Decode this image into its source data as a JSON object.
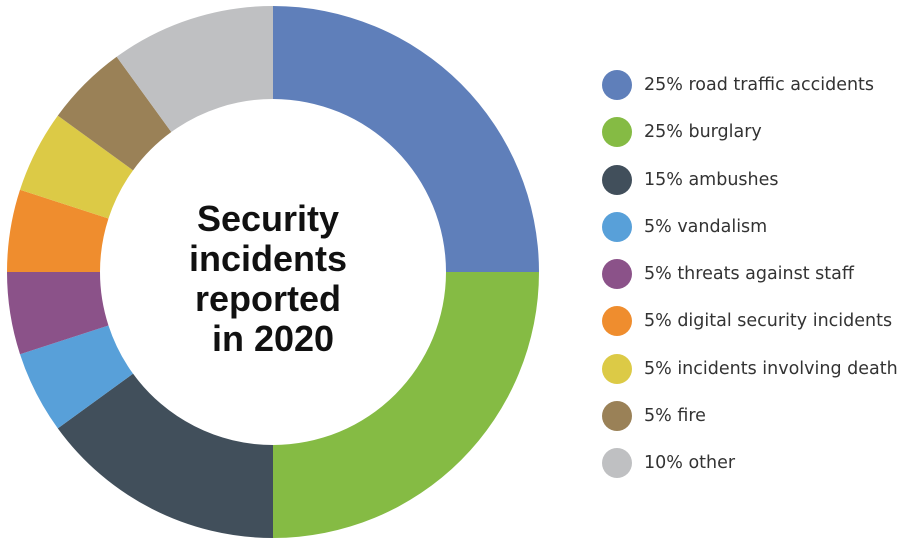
{
  "chart_data": {
    "type": "pie",
    "variant": "donut",
    "title_lines": [
      "Security",
      "incidents",
      "reported",
      "in 2020"
    ],
    "slices": [
      {
        "label": "25% road traffic accidents",
        "value": 25,
        "color": "#5f7fba"
      },
      {
        "label": "25% burglary",
        "value": 25,
        "color": "#85bb44"
      },
      {
        "label": "15% ambushes",
        "value": 15,
        "color": "#414f5b"
      },
      {
        "label": "5% vandalism",
        "value": 5,
        "color": "#58a0d9"
      },
      {
        "label": "5% threats against staff",
        "value": 5,
        "color": "#8b5289"
      },
      {
        "label": "5% digital security incidents",
        "value": 5,
        "color": "#ef8d2e"
      },
      {
        "label": "5% incidents involving death",
        "value": 5,
        "color": "#dcca46"
      },
      {
        "label": "5% fire",
        "value": 5,
        "color": "#9a8157"
      },
      {
        "label": "10% other",
        "value": 10,
        "color": "#bfc0c2"
      }
    ],
    "legend_position": "right"
  }
}
